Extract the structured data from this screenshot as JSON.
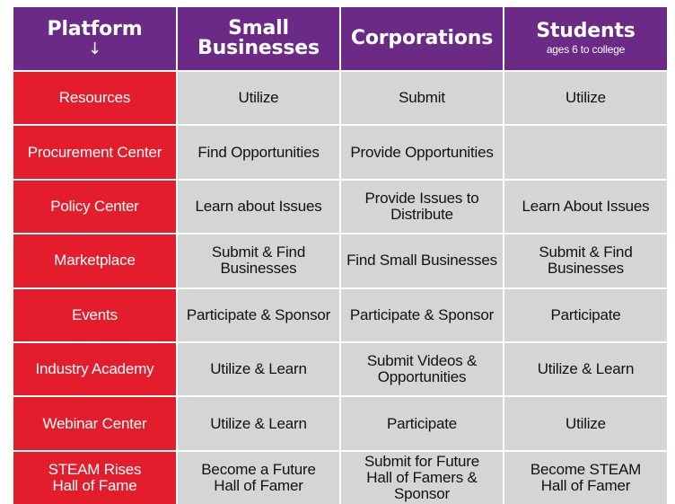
{
  "table": {
    "headers": [
      {
        "title": "Platform",
        "sub": "",
        "arrow": "↓"
      },
      {
        "title": "Small Businesses",
        "sub": ""
      },
      {
        "title": "Corporations",
        "sub": ""
      },
      {
        "title": "Students",
        "sub": "ages 6 to college"
      }
    ],
    "rows": [
      {
        "platform": "Resources",
        "small": "Utilize",
        "corp": "Submit",
        "students": "Utilize"
      },
      {
        "platform": "Procurement Center",
        "small": "Find Opportunities",
        "corp": "Provide Opportunities",
        "students": ""
      },
      {
        "platform": "Policy Center",
        "small": "Learn about Issues",
        "corp": "Provide Issues to Distribute",
        "students": "Learn About Issues"
      },
      {
        "platform": "Marketplace",
        "small": "Submit & Find Businesses",
        "corp": "Find Small Businesses",
        "students": "Submit & Find Businesses"
      },
      {
        "platform": "Events",
        "small": "Participate & Sponsor",
        "corp": "Participate & Sponsor",
        "students": "Participate"
      },
      {
        "platform": "Industry Academy",
        "small": "Utilize & Learn",
        "corp": "Submit Videos & Opportunities",
        "students": "Utilize & Learn"
      },
      {
        "platform": "Webinar Center",
        "small": "Utilize & Learn",
        "corp": "Participate",
        "students": "Utilize"
      },
      {
        "platform": "STEAM Rises Hall of Fame",
        "small": "Become a Future Hall of Famer",
        "corp": "Submit for Future Hall of Famers & Sponsor",
        "students": "Become STEAM Hall of Famer"
      }
    ]
  },
  "colors": {
    "header": "#6b2a85",
    "platform": "#e41d2d",
    "cell": "#d4d5d7"
  }
}
